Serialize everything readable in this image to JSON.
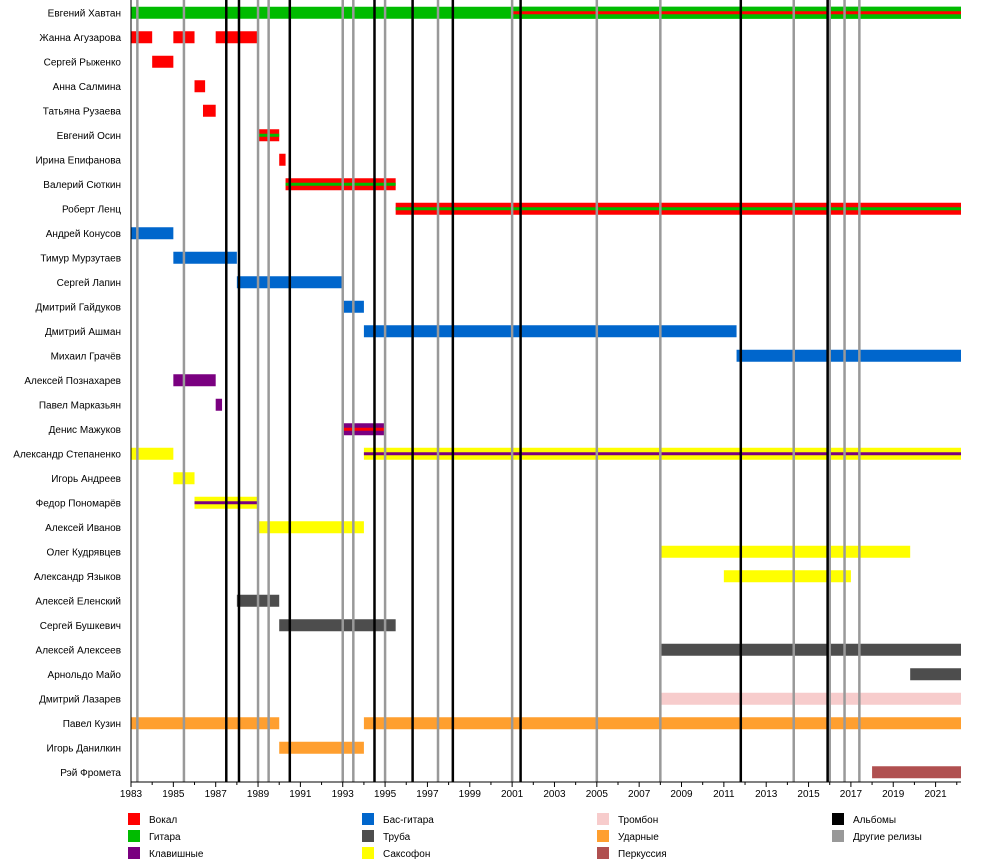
{
  "chart_data": {
    "type": "timeline",
    "title": "",
    "xlim": [
      1983,
      2022.2
    ],
    "x_ticks": [
      "1983",
      "1985",
      "1987",
      "1989",
      "1991",
      "1993",
      "1995",
      "1997",
      "1999",
      "2001",
      "2003",
      "2005",
      "2007",
      "2009",
      "2011",
      "2013",
      "2015",
      "2017",
      "2019",
      "2021"
    ],
    "roles": {
      "vocal": {
        "label": "Вокал",
        "color": "#ff0000"
      },
      "guitar": {
        "label": "Гитара",
        "color": "#00bb00"
      },
      "keys": {
        "label": "Клавишные",
        "color": "#7a0080"
      },
      "bass": {
        "label": "Бас-гитара",
        "color": "#0066cc"
      },
      "trumpet": {
        "label": "Труба",
        "color": "#4d4d4d"
      },
      "sax": {
        "label": "Саксофон",
        "color": "#ffff00"
      },
      "trombone": {
        "label": "Тромбон",
        "color": "#f7cccc"
      },
      "drums": {
        "label": "Ударные",
        "color": "#ff9f2f"
      },
      "percussion": {
        "label": "Перкуссия",
        "color": "#b05050"
      },
      "albums": {
        "label": "Альбомы",
        "color": "#000000"
      },
      "other": {
        "label": "Другие релизы",
        "color": "#999999"
      }
    },
    "legend_order": [
      [
        "vocal",
        "guitar",
        "keys"
      ],
      [
        "bass",
        "trumpet",
        "sax"
      ],
      [
        "trombone",
        "drums",
        "percussion"
      ],
      [
        "albums",
        "other"
      ]
    ],
    "albums": [
      1987.5,
      1988.1,
      1990.5,
      1994.5,
      1996.3,
      1998.2,
      2001.4,
      2011.8,
      2015.9
    ],
    "other_releases": [
      1983.3,
      1985.5,
      1989.0,
      1989.5,
      1993.0,
      1993.5,
      1995.0,
      1997.5,
      2001.0,
      2005.0,
      2008.0,
      2014.3,
      2016.0,
      2016.7,
      2017.4
    ],
    "members": [
      {
        "name": "Евгений Хавтан",
        "bars": [
          {
            "start": 1983.0,
            "end": 2022.2,
            "role": "guitar",
            "stripe": null
          },
          {
            "start": 2001.0,
            "end": 2022.2,
            "role": "guitar",
            "stripe": "vocal"
          }
        ]
      },
      {
        "name": "Жанна Агузарова",
        "bars": [
          {
            "start": 1983.0,
            "end": 1984.0,
            "role": "vocal",
            "stripe": null
          },
          {
            "start": 1985.0,
            "end": 1986.0,
            "role": "vocal",
            "stripe": null
          },
          {
            "start": 1987.0,
            "end": 1989.0,
            "role": "vocal",
            "stripe": null
          }
        ]
      },
      {
        "name": "Сергей Рыженко",
        "bars": [
          {
            "start": 1984.0,
            "end": 1985.0,
            "role": "vocal",
            "stripe": null
          }
        ]
      },
      {
        "name": "Анна Салмина",
        "bars": [
          {
            "start": 1986.0,
            "end": 1986.5,
            "role": "vocal",
            "stripe": null
          }
        ]
      },
      {
        "name": "Татьяна Рузаева",
        "bars": [
          {
            "start": 1986.4,
            "end": 1987.0,
            "role": "vocal",
            "stripe": null
          }
        ]
      },
      {
        "name": "Евгений Осин",
        "bars": [
          {
            "start": 1989.0,
            "end": 1990.0,
            "role": "vocal",
            "stripe": "guitar"
          }
        ]
      },
      {
        "name": "Ирина Епифанова",
        "bars": [
          {
            "start": 1990.0,
            "end": 1990.3,
            "role": "vocal",
            "stripe": null
          }
        ]
      },
      {
        "name": "Валерий Сюткин",
        "bars": [
          {
            "start": 1990.3,
            "end": 1995.5,
            "role": "vocal",
            "stripe": "guitar"
          }
        ]
      },
      {
        "name": "Роберт Ленц",
        "bars": [
          {
            "start": 1995.5,
            "end": 2022.2,
            "role": "vocal",
            "stripe": "guitar"
          }
        ]
      },
      {
        "name": "Андрей Конусов",
        "bars": [
          {
            "start": 1983.0,
            "end": 1985.0,
            "role": "bass",
            "stripe": null
          }
        ]
      },
      {
        "name": "Тимур Мурзутаев",
        "bars": [
          {
            "start": 1985.0,
            "end": 1988.0,
            "role": "bass",
            "stripe": null
          }
        ]
      },
      {
        "name": "Сергей Лапин",
        "bars": [
          {
            "start": 1988.0,
            "end": 1993.0,
            "role": "bass",
            "stripe": null
          }
        ]
      },
      {
        "name": "Дмитрий Гайдуков",
        "bars": [
          {
            "start": 1993.0,
            "end": 1994.0,
            "role": "bass",
            "stripe": null
          }
        ]
      },
      {
        "name": "Дмитрий Ашман",
        "bars": [
          {
            "start": 1994.0,
            "end": 2011.6,
            "role": "bass",
            "stripe": null
          }
        ]
      },
      {
        "name": "Михаил Грачёв",
        "bars": [
          {
            "start": 2011.6,
            "end": 2022.2,
            "role": "bass",
            "stripe": null
          }
        ]
      },
      {
        "name": "Алексей Познахарев",
        "bars": [
          {
            "start": 1985.0,
            "end": 1987.0,
            "role": "keys",
            "stripe": null
          }
        ]
      },
      {
        "name": "Павел Марказьян",
        "bars": [
          {
            "start": 1987.0,
            "end": 1987.3,
            "role": "keys",
            "stripe": null
          }
        ]
      },
      {
        "name": "Денис Мажуков",
        "bars": [
          {
            "start": 1993.0,
            "end": 1995.0,
            "role": "keys",
            "stripe": "vocal"
          }
        ]
      },
      {
        "name": "Александр Степаненко",
        "bars": [
          {
            "start": 1983.0,
            "end": 1985.0,
            "role": "sax",
            "stripe": null
          },
          {
            "start": 1994.0,
            "end": 2022.2,
            "role": "sax",
            "stripe": "keys"
          }
        ]
      },
      {
        "name": "Игорь Андреев",
        "bars": [
          {
            "start": 1985.0,
            "end": 1986.0,
            "role": "sax",
            "stripe": null
          }
        ]
      },
      {
        "name": "Федор Пономарёв",
        "bars": [
          {
            "start": 1986.0,
            "end": 1989.0,
            "role": "sax",
            "stripe": "keys"
          }
        ]
      },
      {
        "name": "Алексей Иванов",
        "bars": [
          {
            "start": 1989.0,
            "end": 1994.0,
            "role": "sax",
            "stripe": null
          }
        ]
      },
      {
        "name": "Олег Кудрявцев",
        "bars": [
          {
            "start": 2008.0,
            "end": 2019.8,
            "role": "sax",
            "stripe": null
          }
        ]
      },
      {
        "name": "Александр Языков",
        "bars": [
          {
            "start": 2011.0,
            "end": 2017.0,
            "role": "sax",
            "stripe": null
          }
        ]
      },
      {
        "name": "Алексей Еленский",
        "bars": [
          {
            "start": 1988.0,
            "end": 1990.0,
            "role": "trumpet",
            "stripe": null
          }
        ]
      },
      {
        "name": "Сергей Бушкевич",
        "bars": [
          {
            "start": 1990.0,
            "end": 1995.5,
            "role": "trumpet",
            "stripe": null
          }
        ]
      },
      {
        "name": "Алексей Алексеев",
        "bars": [
          {
            "start": 2008.0,
            "end": 2022.2,
            "role": "trumpet",
            "stripe": null
          }
        ]
      },
      {
        "name": "Арнольдо Майо",
        "bars": [
          {
            "start": 2019.8,
            "end": 2022.2,
            "role": "trumpet",
            "stripe": null
          }
        ]
      },
      {
        "name": "Дмитрий Лазарев",
        "bars": [
          {
            "start": 2008.0,
            "end": 2022.2,
            "role": "trombone",
            "stripe": null
          }
        ]
      },
      {
        "name": "Павел Кузин",
        "bars": [
          {
            "start": 1983.0,
            "end": 1990.0,
            "role": "drums",
            "stripe": null
          },
          {
            "start": 1994.0,
            "end": 2022.2,
            "role": "drums",
            "stripe": null
          }
        ]
      },
      {
        "name": "Игорь Данилкин",
        "bars": [
          {
            "start": 1990.0,
            "end": 1994.0,
            "role": "drums",
            "stripe": null
          }
        ]
      },
      {
        "name": "Рэй Фромета",
        "bars": [
          {
            "start": 2018.0,
            "end": 2022.2,
            "role": "percussion",
            "stripe": null
          }
        ]
      }
    ]
  }
}
